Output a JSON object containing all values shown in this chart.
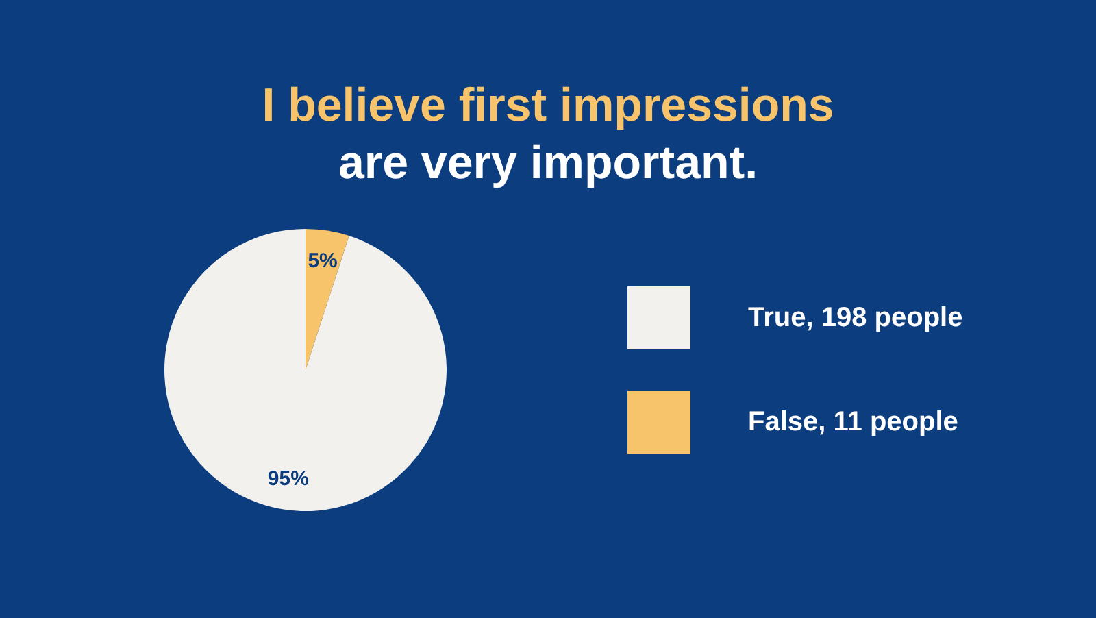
{
  "chart_data": {
    "type": "pie",
    "title": "I believe first impressions",
    "subtitle": "are very important.",
    "categories": [
      "True, 198 people",
      "False, 11 people"
    ],
    "values": [
      95,
      5
    ],
    "colors": [
      "#f2f1ee",
      "#f7c46c"
    ],
    "value_labels": [
      "95%",
      "5%"
    ],
    "legend": "right"
  }
}
